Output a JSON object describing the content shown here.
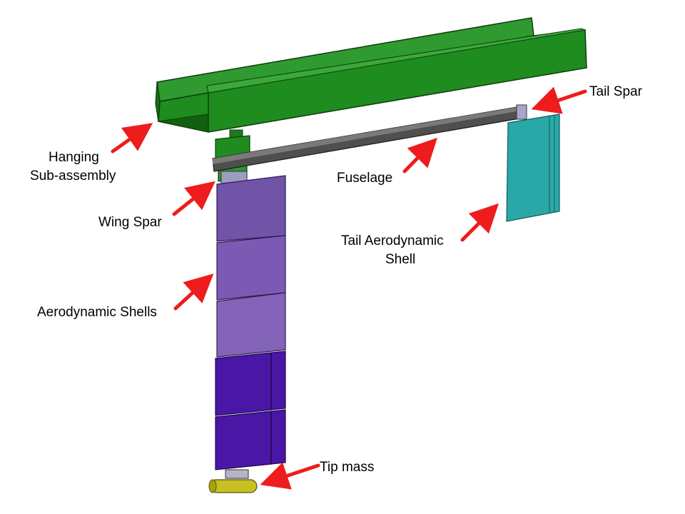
{
  "labels": {
    "hanging_line1": "Hanging",
    "hanging_line2": "Sub-assembly",
    "tail_spar": "Tail Spar",
    "fuselage": "Fuselage",
    "wing_spar": "Wing Spar",
    "tail_shell_line1": "Tail Aerodynamic",
    "tail_shell_line2": "Shell",
    "aero_shells": "Aerodynamic Shells",
    "tip_mass": "Tip mass"
  },
  "colors": {
    "hanging_frame": "#1e8a1e",
    "hanging_frame_dark": "#0f5e0f",
    "fuselage": "#555555",
    "tail_shell": "#2bb3b3",
    "shell_light": "#7a5ab0",
    "shell_dark": "#4a1aa8",
    "tip_mass": "#c8c020",
    "arrow": "#ee1c1c"
  }
}
